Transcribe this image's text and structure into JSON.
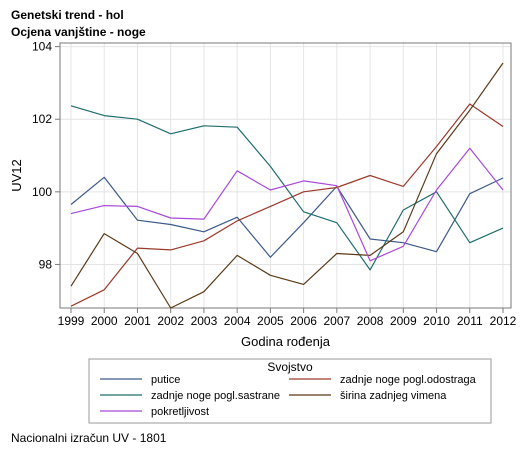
{
  "header": {
    "title": "Genetski trend - hol",
    "subtitle": "Ocjena vanjštine - noge"
  },
  "footnote": "Nacionalni izračun UV - 1801",
  "colors": {
    "putice": "#3c5a8a",
    "zadnje_odostraga": "#9b3a2a",
    "zadnje_sastrane": "#1f6e6e",
    "sirina": "#5a3a18",
    "pokretljivost": "#a84ad8",
    "grid": "#e4e4e4",
    "frame": "#7a7a7a"
  },
  "chart_data": {
    "type": "line",
    "xlabel": "Godina rođenja",
    "ylabel": "UV12",
    "x": [
      1999,
      2000,
      2001,
      2002,
      2003,
      2004,
      2005,
      2006,
      2007,
      2008,
      2009,
      2010,
      2011,
      2012
    ],
    "xlim": [
      1999,
      2012
    ],
    "ylim": [
      96.8,
      104.1
    ],
    "yticks": [
      98,
      100,
      102,
      104
    ],
    "grid": true,
    "legend": {
      "title": "Svojstvo",
      "placement": "bottom"
    },
    "series": [
      {
        "name": "putice",
        "color_key": "putice",
        "values": [
          99.65,
          100.4,
          99.22,
          99.1,
          98.9,
          99.3,
          98.2,
          99.15,
          100.15,
          98.7,
          98.6,
          98.35,
          99.95,
          100.38
        ]
      },
      {
        "name": "zadnje noge pogl.odostraga",
        "color_key": "zadnje_odostraga",
        "values": [
          96.85,
          97.3,
          98.45,
          98.4,
          98.65,
          99.2,
          99.6,
          100.0,
          100.12,
          100.45,
          100.15,
          101.25,
          102.42,
          101.8
        ]
      },
      {
        "name": "zadnje noge pogl.sastrane",
        "color_key": "zadnje_sastrane",
        "values": [
          102.37,
          102.1,
          102.0,
          101.6,
          101.82,
          101.78,
          100.7,
          99.45,
          99.15,
          97.85,
          99.5,
          100.0,
          98.6,
          99.0
        ]
      },
      {
        "name": "širina zadnjeg vimena",
        "color_key": "sirina",
        "values": [
          97.4,
          98.85,
          98.3,
          96.8,
          97.25,
          98.25,
          97.7,
          97.45,
          98.3,
          98.25,
          98.9,
          101.05,
          102.25,
          103.55
        ]
      },
      {
        "name": "pokretljivost",
        "color_key": "pokretljivost",
        "values": [
          99.4,
          99.62,
          99.6,
          99.28,
          99.25,
          100.58,
          100.05,
          100.3,
          100.17,
          98.1,
          98.5,
          100.05,
          101.2,
          100.05
        ]
      }
    ]
  }
}
